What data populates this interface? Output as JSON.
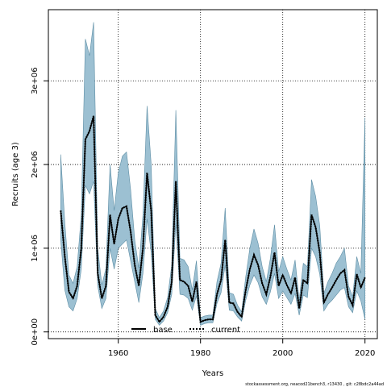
{
  "chart_data": {
    "type": "line",
    "title": "",
    "xlabel": "Years",
    "ylabel": "Recruits (age 3)",
    "xlim": [
      1943,
      2023
    ],
    "ylim": [
      -80000,
      3850000
    ],
    "x_ticks": [
      1960,
      1980,
      2000,
      2020
    ],
    "x_tick_labels": [
      "1960",
      "1980",
      "2000",
      "2020"
    ],
    "y_ticks": [
      0,
      1000000,
      2000000,
      3000000
    ],
    "y_tick_labels": [
      "0e+00",
      "1e+06",
      "2e+06",
      "3e+06"
    ],
    "grid": true,
    "legend_position": "bottom-center",
    "colors": {
      "band_fill": "#9cc0d2",
      "band_edge": "#5e8ea5",
      "line": "#000000",
      "grid": "#000000"
    },
    "footer_note": "stockassessment.org, neacod21bench3, r13430 , git: c28bdc2a44ad",
    "series": [
      {
        "name": "base",
        "style": "solid",
        "x": [
          1946,
          1947,
          1948,
          1949,
          1950,
          1951,
          1952,
          1953,
          1954,
          1955,
          1956,
          1957,
          1958,
          1959,
          1960,
          1961,
          1962,
          1963,
          1964,
          1965,
          1966,
          1967,
          1968,
          1969,
          1970,
          1971,
          1972,
          1973,
          1974,
          1975,
          1976,
          1977,
          1978,
          1979,
          1980,
          1981,
          1982,
          1983,
          1984,
          1985,
          1986,
          1987,
          1988,
          1989,
          1990,
          1991,
          1992,
          1993,
          1994,
          1995,
          1996,
          1997,
          1998,
          1999,
          2000,
          2001,
          2002,
          2003,
          2004,
          2005,
          2006,
          2007,
          2008,
          2009,
          2010,
          2011,
          2012,
          2013,
          2014,
          2015,
          2016,
          2017,
          2018,
          2019,
          2020
        ],
        "values": [
          1450000,
          900000,
          480000,
          400000,
          550000,
          1000000,
          2300000,
          2400000,
          2580000,
          700000,
          400000,
          550000,
          1400000,
          1050000,
          1350000,
          1480000,
          1500000,
          1200000,
          800000,
          550000,
          1000000,
          1900000,
          1450000,
          200000,
          120000,
          180000,
          300000,
          600000,
          1800000,
          620000,
          600000,
          550000,
          360000,
          600000,
          120000,
          140000,
          150000,
          150000,
          450000,
          620000,
          1100000,
          350000,
          340000,
          240000,
          180000,
          500000,
          750000,
          920000,
          800000,
          580000,
          450000,
          660000,
          950000,
          550000,
          680000,
          560000,
          460000,
          650000,
          280000,
          620000,
          580000,
          1400000,
          1250000,
          950000,
          350000,
          450000,
          530000,
          620000,
          700000,
          740000,
          420000,
          320000,
          690000,
          530000,
          650000
        ],
        "lower": [
          null
        ],
        "upper": [
          null
        ]
      },
      {
        "name": "current",
        "style": "dotted",
        "x": [
          1946,
          1947,
          1948,
          1949,
          1950,
          1951,
          1952,
          1953,
          1954,
          1955,
          1956,
          1957,
          1958,
          1959,
          1960,
          1961,
          1962,
          1963,
          1964,
          1965,
          1966,
          1967,
          1968,
          1969,
          1970,
          1971,
          1972,
          1973,
          1974,
          1975,
          1976,
          1977,
          1978,
          1979,
          1980,
          1981,
          1982,
          1983,
          1984,
          1985,
          1986,
          1987,
          1988,
          1989,
          1990,
          1991,
          1992,
          1993,
          1994,
          1995,
          1996,
          1997,
          1998,
          1999,
          2000,
          2001,
          2002,
          2003,
          2004,
          2005,
          2006,
          2007,
          2008,
          2009,
          2010,
          2011,
          2012,
          2013,
          2014,
          2015,
          2016,
          2017,
          2018,
          2019,
          2020
        ],
        "values": [
          1450000,
          900000,
          480000,
          400000,
          550000,
          1000000,
          2300000,
          2400000,
          2580000,
          700000,
          400000,
          550000,
          1400000,
          1050000,
          1350000,
          1480000,
          1500000,
          1200000,
          800000,
          550000,
          1000000,
          1900000,
          1450000,
          200000,
          120000,
          180000,
          300000,
          600000,
          1800000,
          620000,
          600000,
          550000,
          360000,
          600000,
          120000,
          140000,
          150000,
          150000,
          450000,
          620000,
          1100000,
          350000,
          340000,
          240000,
          180000,
          500000,
          750000,
          920000,
          800000,
          580000,
          450000,
          660000,
          950000,
          550000,
          680000,
          560000,
          460000,
          650000,
          280000,
          620000,
          580000,
          1400000,
          1250000,
          950000,
          350000,
          450000,
          530000,
          620000,
          700000,
          740000,
          420000,
          320000,
          690000,
          530000,
          650000
        ]
      }
    ],
    "band": {
      "x": [
        1946,
        1947,
        1948,
        1949,
        1950,
        1951,
        1952,
        1953,
        1954,
        1955,
        1956,
        1957,
        1958,
        1959,
        1960,
        1961,
        1962,
        1963,
        1964,
        1965,
        1966,
        1967,
        1968,
        1969,
        1970,
        1971,
        1972,
        1973,
        1974,
        1975,
        1976,
        1977,
        1978,
        1979,
        1980,
        1981,
        1982,
        1983,
        1984,
        1985,
        1986,
        1987,
        1988,
        1989,
        1990,
        1991,
        1992,
        1993,
        1994,
        1995,
        1996,
        1997,
        1998,
        1999,
        2000,
        2001,
        2002,
        2003,
        2004,
        2005,
        2006,
        2007,
        2008,
        2009,
        2010,
        2011,
        2012,
        2013,
        2014,
        2015,
        2016,
        2017,
        2018,
        2019,
        2020
      ],
      "lower": [
        1100000,
        500000,
        300000,
        250000,
        400000,
        750000,
        1750000,
        1650000,
        1800000,
        550000,
        280000,
        400000,
        1000000,
        750000,
        1000000,
        1050000,
        1100000,
        850000,
        600000,
        350000,
        700000,
        1350000,
        950000,
        150000,
        80000,
        130000,
        230000,
        450000,
        1300000,
        450000,
        440000,
        400000,
        260000,
        430000,
        80000,
        100000,
        110000,
        110000,
        340000,
        470000,
        800000,
        260000,
        250000,
        180000,
        130000,
        380000,
        560000,
        680000,
        590000,
        420000,
        330000,
        480000,
        700000,
        400000,
        490000,
        410000,
        330000,
        460000,
        200000,
        440000,
        410000,
        1000000,
        900000,
        690000,
        250000,
        330000,
        380000,
        440000,
        500000,
        530000,
        300000,
        230000,
        490000,
        370000,
        150000
      ],
      "upper": [
        2120000,
        1300000,
        680000,
        580000,
        780000,
        1400000,
        3500000,
        3300000,
        3700000,
        1000000,
        560000,
        760000,
        2000000,
        1450000,
        1900000,
        2100000,
        2150000,
        1700000,
        1100000,
        760000,
        1400000,
        2700000,
        2000000,
        280000,
        170000,
        250000,
        410000,
        800000,
        2650000,
        880000,
        860000,
        780000,
        500000,
        850000,
        170000,
        190000,
        200000,
        200000,
        600000,
        820000,
        1480000,
        470000,
        450000,
        320000,
        240000,
        660000,
        1000000,
        1230000,
        1060000,
        780000,
        600000,
        880000,
        1280000,
        720000,
        900000,
        750000,
        620000,
        860000,
        380000,
        820000,
        780000,
        1820000,
        1620000,
        1270000,
        460000,
        600000,
        700000,
        820000,
        900000,
        1000000,
        550000,
        420000,
        900000,
        700000,
        2560000
      ]
    }
  }
}
